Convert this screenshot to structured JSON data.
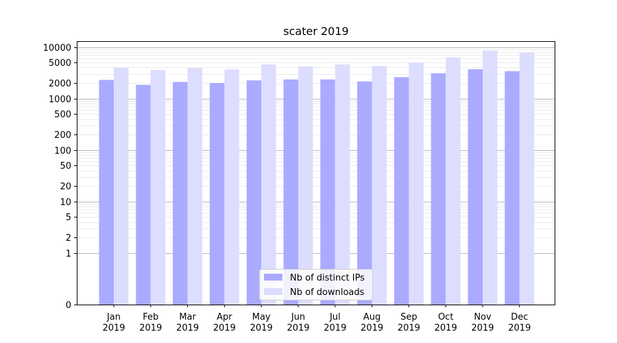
{
  "chart_data": {
    "type": "bar",
    "title": "scater 2019",
    "xlabel": "",
    "ylabel": "",
    "y_scale": "symlog",
    "ylim": [
      0,
      13000
    ],
    "yticks": [
      0,
      1,
      2,
      5,
      10,
      20,
      50,
      100,
      200,
      500,
      1000,
      2000,
      5000,
      10000
    ],
    "ytick_labels": [
      "0",
      "1",
      "2",
      "5",
      "10",
      "20",
      "50",
      "100",
      "200",
      "500",
      "1000",
      "2000",
      "5000",
      "10000"
    ],
    "grid": true,
    "legend_position": "bottom-center",
    "categories": [
      [
        "Jan",
        "2019"
      ],
      [
        "Feb",
        "2019"
      ],
      [
        "Mar",
        "2019"
      ],
      [
        "Apr",
        "2019"
      ],
      [
        "May",
        "2019"
      ],
      [
        "Jun",
        "2019"
      ],
      [
        "Jul",
        "2019"
      ],
      [
        "Aug",
        "2019"
      ],
      [
        "Sep",
        "2019"
      ],
      [
        "Oct",
        "2019"
      ],
      [
        "Nov",
        "2019"
      ],
      [
        "Dec",
        "2019"
      ]
    ],
    "series": [
      {
        "name": "Nb of distinct IPs",
        "color": "#aaaaff",
        "values": [
          2300,
          1850,
          2100,
          2000,
          2250,
          2350,
          2350,
          2150,
          2600,
          3100,
          3700,
          3400
        ]
      },
      {
        "name": "Nb of downloads",
        "color": "#ddddff",
        "values": [
          4000,
          3600,
          3900,
          3700,
          4600,
          4200,
          4600,
          4300,
          5000,
          6300,
          8500,
          7800
        ]
      }
    ]
  }
}
